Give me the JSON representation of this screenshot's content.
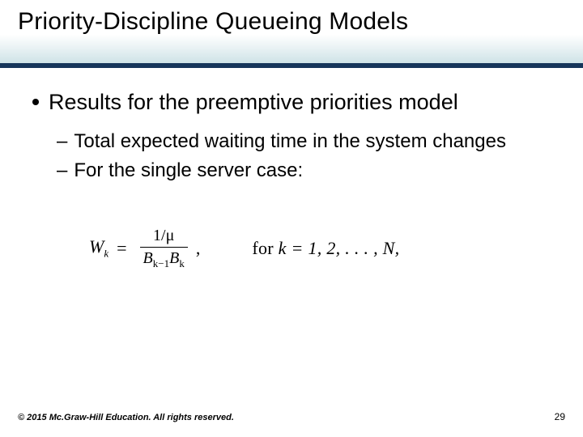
{
  "slide": {
    "title": "Priority-Discipline Queueing Models",
    "rule_color": "#16365a",
    "title_band_gradient_bottom": "#cfe3e7",
    "bullets": {
      "l1": "Results for the preemptive priorities model",
      "l2a": "Total expected waiting time in the system changes",
      "l2b": "For the single server case:"
    },
    "formula": {
      "lhs_var": "W",
      "lhs_sub": "k",
      "numerator": "1/μ",
      "den_left_base": "B",
      "den_left_sub": "k−1",
      "den_right_base": "B",
      "den_right_sub": "k",
      "post_comma": ",",
      "for_label": "for ",
      "for_expr": "k = 1, 2, . . . , N,"
    },
    "footer": "© 2015 Mc.Graw-Hill Education. All rights reserved.",
    "page_number": "29"
  },
  "style": {
    "title_fontsize": 30,
    "l1_fontsize": 27,
    "l2_fontsize": 24,
    "formula_fontsize": 22,
    "footer_fontsize": 11,
    "pagenum_fontsize": 12,
    "text_color": "#000000",
    "background_color": "#ffffff"
  }
}
